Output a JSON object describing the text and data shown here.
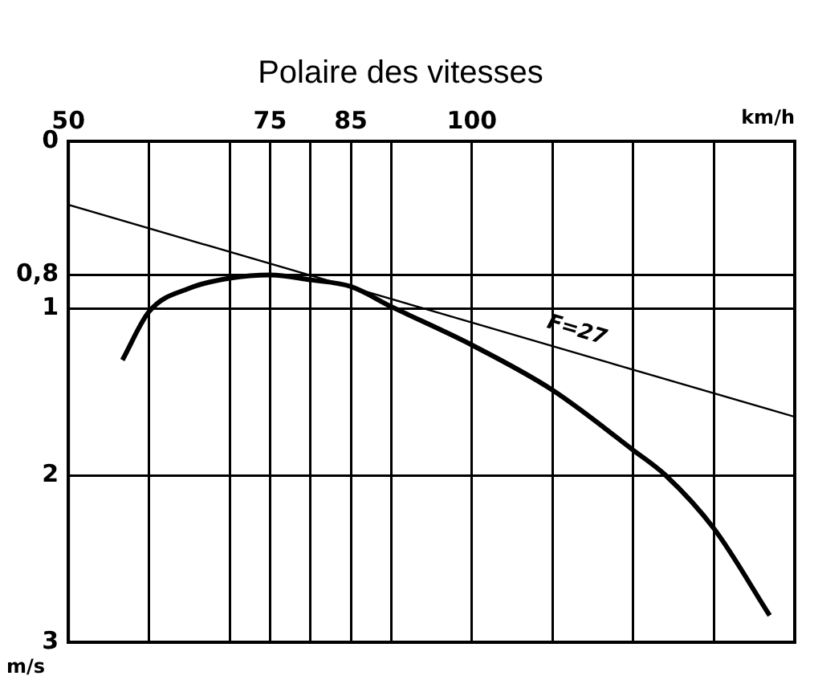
{
  "chart_data": {
    "type": "line",
    "title": "Polaire des vitesses",
    "xlabel": "km/h",
    "ylabel": "m/s",
    "xlim": [
      50,
      140
    ],
    "xticks": [
      50,
      {
        "value": 60,
        "label": null
      },
      {
        "value": 70,
        "label": null
      },
      75,
      {
        "value": 80,
        "label": null
      },
      85,
      {
        "value": 90,
        "label": null
      },
      100,
      {
        "value": 110,
        "label": null
      },
      {
        "value": 120,
        "label": null
      },
      {
        "value": 130,
        "label": null
      },
      {
        "value": 140,
        "label": null
      }
    ],
    "ylim": [
      3,
      0
    ],
    "yticks": [
      0,
      {
        "value": 0.8,
        "label": "0,8"
      },
      1,
      2,
      3
    ],
    "grid": true,
    "legend": false,
    "marker": "none",
    "series": [
      {
        "color": "#000000",
        "x": [
          56.7,
          60,
          65,
          70,
          75,
          80,
          85,
          90,
          100,
          110,
          120,
          124,
          130,
          136.9
        ],
        "values": [
          1.31,
          1.02,
          0.88,
          0.82,
          0.8,
          0.83,
          0.87,
          0.99,
          1.22,
          1.49,
          1.85,
          2.0,
          2.32,
          2.84
        ]
      },
      {
        "color": "#000000",
        "x": [
          50,
          140
        ],
        "values": [
          0.38,
          1.65
        ]
      }
    ],
    "annotations": [
      "F=27"
    ]
  }
}
